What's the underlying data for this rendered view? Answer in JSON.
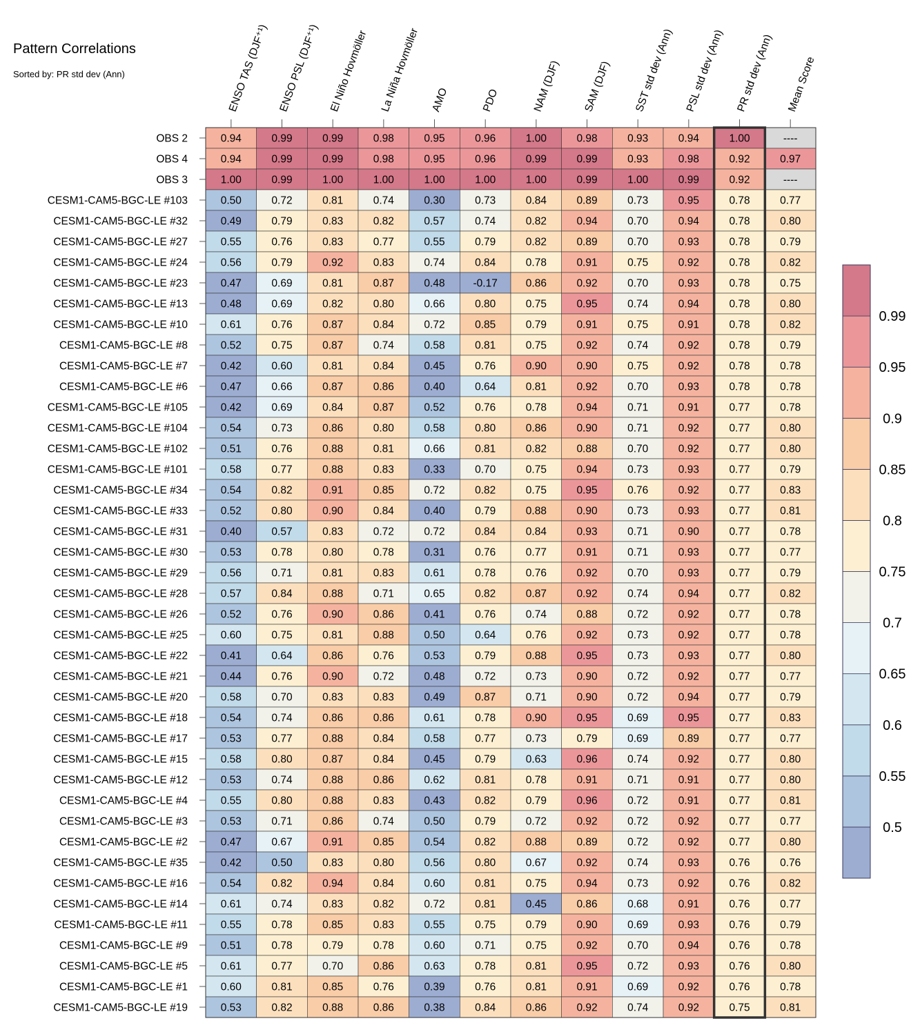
{
  "chart_data": {
    "type": "heatmap",
    "title": "Pattern Correlations",
    "subtitle": "Sorted by: PR std dev (Ann)",
    "columns": [
      "ENSO TAS (DJF⁺¹)",
      "ENSO PSL (DJF⁺¹)",
      "El Niño Hovmöller",
      "La Niña Hovmöller",
      "AMO",
      "PDO",
      "NAM (DJF)",
      "SAM (DJF)",
      "SST std dev (Ann)",
      "PSL std dev (Ann)",
      "PR std dev (Ann)",
      "Mean Score"
    ],
    "highlighted_column": "PR std dev (Ann)",
    "missing_label": "----",
    "rows": [
      "OBS 2",
      "OBS 4",
      "OBS 3",
      "CESM1-CAM5-BGC-LE #103",
      "CESM1-CAM5-BGC-LE #32",
      "CESM1-CAM5-BGC-LE #27",
      "CESM1-CAM5-BGC-LE #24",
      "CESM1-CAM5-BGC-LE #23",
      "CESM1-CAM5-BGC-LE #13",
      "CESM1-CAM5-BGC-LE #10",
      "CESM1-CAM5-BGC-LE #8",
      "CESM1-CAM5-BGC-LE #7",
      "CESM1-CAM5-BGC-LE #6",
      "CESM1-CAM5-BGC-LE #105",
      "CESM1-CAM5-BGC-LE #104",
      "CESM1-CAM5-BGC-LE #102",
      "CESM1-CAM5-BGC-LE #101",
      "CESM1-CAM5-BGC-LE #34",
      "CESM1-CAM5-BGC-LE #33",
      "CESM1-CAM5-BGC-LE #31",
      "CESM1-CAM5-BGC-LE #30",
      "CESM1-CAM5-BGC-LE #29",
      "CESM1-CAM5-BGC-LE #28",
      "CESM1-CAM5-BGC-LE #26",
      "CESM1-CAM5-BGC-LE #25",
      "CESM1-CAM5-BGC-LE #22",
      "CESM1-CAM5-BGC-LE #21",
      "CESM1-CAM5-BGC-LE #20",
      "CESM1-CAM5-BGC-LE #18",
      "CESM1-CAM5-BGC-LE #17",
      "CESM1-CAM5-BGC-LE #15",
      "CESM1-CAM5-BGC-LE #12",
      "CESM1-CAM5-BGC-LE #4",
      "CESM1-CAM5-BGC-LE #3",
      "CESM1-CAM5-BGC-LE #2",
      "CESM1-CAM5-BGC-LE #35",
      "CESM1-CAM5-BGC-LE #16",
      "CESM1-CAM5-BGC-LE #14",
      "CESM1-CAM5-BGC-LE #11",
      "CESM1-CAM5-BGC-LE #9",
      "CESM1-CAM5-BGC-LE #5",
      "CESM1-CAM5-BGC-LE #1",
      "CESM1-CAM5-BGC-LE #19"
    ],
    "values": [
      [
        "0.94",
        "0.99",
        "0.99",
        "0.98",
        "0.95",
        "0.96",
        "1.00",
        "0.98",
        "0.93",
        "0.94",
        "1.00",
        null
      ],
      [
        "0.94",
        "0.99",
        "0.99",
        "0.98",
        "0.95",
        "0.96",
        "0.99",
        "0.99",
        "0.93",
        "0.98",
        "0.92",
        "0.97"
      ],
      [
        "1.00",
        "0.99",
        "1.00",
        "1.00",
        "1.00",
        "1.00",
        "1.00",
        "0.99",
        "1.00",
        "0.99",
        "0.92",
        null
      ],
      [
        "0.50",
        "0.72",
        "0.81",
        "0.74",
        "0.30",
        "0.73",
        "0.84",
        "0.89",
        "0.73",
        "0.95",
        "0.78",
        "0.77"
      ],
      [
        "0.49",
        "0.79",
        "0.83",
        "0.82",
        "0.57",
        "0.74",
        "0.82",
        "0.94",
        "0.70",
        "0.94",
        "0.78",
        "0.80"
      ],
      [
        "0.55",
        "0.76",
        "0.83",
        "0.77",
        "0.55",
        "0.79",
        "0.82",
        "0.89",
        "0.70",
        "0.93",
        "0.78",
        "0.79"
      ],
      [
        "0.56",
        "0.79",
        "0.92",
        "0.83",
        "0.74",
        "0.84",
        "0.78",
        "0.91",
        "0.75",
        "0.92",
        "0.78",
        "0.82"
      ],
      [
        "0.47",
        "0.69",
        "0.81",
        "0.87",
        "0.48",
        "-0.17",
        "0.86",
        "0.92",
        "0.70",
        "0.93",
        "0.78",
        "0.75"
      ],
      [
        "0.48",
        "0.69",
        "0.82",
        "0.80",
        "0.66",
        "0.80",
        "0.75",
        "0.95",
        "0.74",
        "0.94",
        "0.78",
        "0.80"
      ],
      [
        "0.61",
        "0.76",
        "0.87",
        "0.84",
        "0.72",
        "0.85",
        "0.79",
        "0.91",
        "0.75",
        "0.91",
        "0.78",
        "0.82"
      ],
      [
        "0.52",
        "0.75",
        "0.87",
        "0.74",
        "0.58",
        "0.81",
        "0.75",
        "0.92",
        "0.74",
        "0.92",
        "0.78",
        "0.79"
      ],
      [
        "0.42",
        "0.60",
        "0.81",
        "0.84",
        "0.45",
        "0.76",
        "0.90",
        "0.90",
        "0.75",
        "0.92",
        "0.78",
        "0.78"
      ],
      [
        "0.47",
        "0.66",
        "0.87",
        "0.86",
        "0.40",
        "0.64",
        "0.81",
        "0.92",
        "0.70",
        "0.93",
        "0.78",
        "0.78"
      ],
      [
        "0.42",
        "0.69",
        "0.84",
        "0.87",
        "0.52",
        "0.76",
        "0.78",
        "0.94",
        "0.71",
        "0.91",
        "0.77",
        "0.78"
      ],
      [
        "0.54",
        "0.73",
        "0.86",
        "0.80",
        "0.58",
        "0.80",
        "0.86",
        "0.90",
        "0.71",
        "0.92",
        "0.77",
        "0.80"
      ],
      [
        "0.51",
        "0.76",
        "0.88",
        "0.81",
        "0.66",
        "0.81",
        "0.82",
        "0.88",
        "0.70",
        "0.92",
        "0.77",
        "0.80"
      ],
      [
        "0.58",
        "0.77",
        "0.88",
        "0.83",
        "0.33",
        "0.70",
        "0.75",
        "0.94",
        "0.73",
        "0.93",
        "0.77",
        "0.79"
      ],
      [
        "0.54",
        "0.82",
        "0.91",
        "0.85",
        "0.72",
        "0.82",
        "0.75",
        "0.95",
        "0.76",
        "0.92",
        "0.77",
        "0.83"
      ],
      [
        "0.52",
        "0.80",
        "0.90",
        "0.84",
        "0.40",
        "0.79",
        "0.88",
        "0.90",
        "0.73",
        "0.93",
        "0.77",
        "0.81"
      ],
      [
        "0.40",
        "0.57",
        "0.83",
        "0.72",
        "0.72",
        "0.84",
        "0.84",
        "0.93",
        "0.71",
        "0.90",
        "0.77",
        "0.78"
      ],
      [
        "0.53",
        "0.78",
        "0.80",
        "0.78",
        "0.31",
        "0.76",
        "0.77",
        "0.91",
        "0.71",
        "0.93",
        "0.77",
        "0.77"
      ],
      [
        "0.56",
        "0.71",
        "0.81",
        "0.83",
        "0.61",
        "0.78",
        "0.76",
        "0.92",
        "0.70",
        "0.93",
        "0.77",
        "0.79"
      ],
      [
        "0.57",
        "0.84",
        "0.88",
        "0.71",
        "0.65",
        "0.82",
        "0.87",
        "0.92",
        "0.74",
        "0.94",
        "0.77",
        "0.82"
      ],
      [
        "0.52",
        "0.76",
        "0.90",
        "0.86",
        "0.41",
        "0.76",
        "0.74",
        "0.88",
        "0.72",
        "0.92",
        "0.77",
        "0.78"
      ],
      [
        "0.60",
        "0.75",
        "0.81",
        "0.88",
        "0.50",
        "0.64",
        "0.76",
        "0.92",
        "0.73",
        "0.92",
        "0.77",
        "0.78"
      ],
      [
        "0.41",
        "0.64",
        "0.86",
        "0.76",
        "0.53",
        "0.79",
        "0.88",
        "0.95",
        "0.73",
        "0.93",
        "0.77",
        "0.80"
      ],
      [
        "0.44",
        "0.76",
        "0.90",
        "0.72",
        "0.48",
        "0.72",
        "0.73",
        "0.90",
        "0.72",
        "0.92",
        "0.77",
        "0.77"
      ],
      [
        "0.58",
        "0.70",
        "0.83",
        "0.83",
        "0.49",
        "0.87",
        "0.71",
        "0.90",
        "0.72",
        "0.94",
        "0.77",
        "0.79"
      ],
      [
        "0.54",
        "0.74",
        "0.86",
        "0.86",
        "0.61",
        "0.78",
        "0.90",
        "0.95",
        "0.69",
        "0.95",
        "0.77",
        "0.83"
      ],
      [
        "0.53",
        "0.77",
        "0.88",
        "0.84",
        "0.58",
        "0.77",
        "0.73",
        "0.79",
        "0.69",
        "0.89",
        "0.77",
        "0.77"
      ],
      [
        "0.58",
        "0.80",
        "0.87",
        "0.84",
        "0.45",
        "0.79",
        "0.63",
        "0.96",
        "0.74",
        "0.92",
        "0.77",
        "0.80"
      ],
      [
        "0.53",
        "0.74",
        "0.88",
        "0.86",
        "0.62",
        "0.81",
        "0.78",
        "0.91",
        "0.71",
        "0.91",
        "0.77",
        "0.80"
      ],
      [
        "0.55",
        "0.80",
        "0.88",
        "0.83",
        "0.43",
        "0.82",
        "0.79",
        "0.96",
        "0.72",
        "0.91",
        "0.77",
        "0.81"
      ],
      [
        "0.53",
        "0.71",
        "0.86",
        "0.74",
        "0.50",
        "0.79",
        "0.72",
        "0.92",
        "0.72",
        "0.92",
        "0.77",
        "0.77"
      ],
      [
        "0.47",
        "0.67",
        "0.91",
        "0.85",
        "0.54",
        "0.82",
        "0.88",
        "0.89",
        "0.72",
        "0.92",
        "0.77",
        "0.80"
      ],
      [
        "0.42",
        "0.50",
        "0.83",
        "0.80",
        "0.56",
        "0.80",
        "0.67",
        "0.92",
        "0.74",
        "0.93",
        "0.76",
        "0.76"
      ],
      [
        "0.54",
        "0.82",
        "0.94",
        "0.84",
        "0.60",
        "0.81",
        "0.75",
        "0.94",
        "0.73",
        "0.92",
        "0.76",
        "0.82"
      ],
      [
        "0.61",
        "0.74",
        "0.83",
        "0.82",
        "0.72",
        "0.81",
        "0.45",
        "0.86",
        "0.68",
        "0.91",
        "0.76",
        "0.77"
      ],
      [
        "0.55",
        "0.78",
        "0.85",
        "0.83",
        "0.55",
        "0.75",
        "0.79",
        "0.90",
        "0.69",
        "0.93",
        "0.76",
        "0.79"
      ],
      [
        "0.51",
        "0.78",
        "0.79",
        "0.78",
        "0.60",
        "0.71",
        "0.75",
        "0.92",
        "0.70",
        "0.94",
        "0.76",
        "0.78"
      ],
      [
        "0.61",
        "0.77",
        "0.70",
        "0.86",
        "0.63",
        "0.78",
        "0.81",
        "0.95",
        "0.72",
        "0.93",
        "0.76",
        "0.80"
      ],
      [
        "0.60",
        "0.81",
        "0.85",
        "0.76",
        "0.39",
        "0.76",
        "0.81",
        "0.91",
        "0.69",
        "0.92",
        "0.76",
        "0.78"
      ],
      [
        "0.53",
        "0.82",
        "0.88",
        "0.86",
        "0.38",
        "0.84",
        "0.86",
        "0.92",
        "0.74",
        "0.92",
        "0.75",
        "0.81"
      ]
    ],
    "colorbar": {
      "levels": [
        0.5,
        0.55,
        0.6,
        0.65,
        0.7,
        0.75,
        0.8,
        0.85,
        0.9,
        0.95,
        0.99
      ],
      "tick_labels": [
        "0.5",
        "0.55",
        "0.6",
        "0.65",
        "0.7",
        "0.75",
        "0.8",
        "0.85",
        "0.9",
        "0.95",
        "0.99"
      ],
      "colors": [
        "#9dadd2",
        "#aec5df",
        "#c2dbea",
        "#d4e7f1",
        "#e7f2f7",
        "#f2f2ea",
        "#fdf0d2",
        "#fce0be",
        "#f9cda8",
        "#f5b39f",
        "#eb979a",
        "#d4798a"
      ],
      "missing_color": "#d9d9d9"
    }
  }
}
